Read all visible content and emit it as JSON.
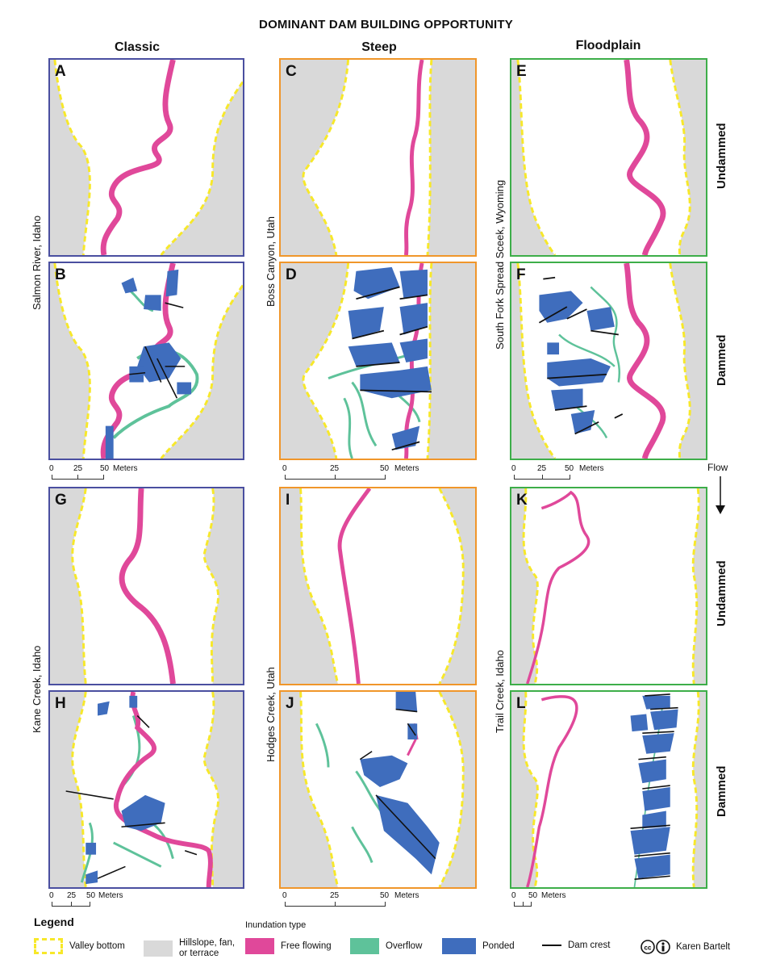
{
  "title": "DOMINANT DAM BUILDING OPPORTUNITY",
  "columns": [
    "Classic",
    "Steep",
    "Floodplain"
  ],
  "row_labels": {
    "undammed": "Undammed",
    "dammed": "Dammed"
  },
  "sites": {
    "salmon": "Salmon River, Idaho",
    "boss": "Boss Canyon, Utah",
    "southfork": "South Fork Spread Sceek, Wyoming",
    "kane": "Kane Creek, Idaho",
    "hodges": "Hodges Creek, Utah",
    "trail": "Trail Creek, Idaho"
  },
  "panels": [
    "A",
    "B",
    "C",
    "D",
    "E",
    "F",
    "G",
    "H",
    "I",
    "J",
    "K",
    "L"
  ],
  "scales": {
    "s1": {
      "t0": "0",
      "t1": "25",
      "t2": "50",
      "unit": "Meters"
    },
    "s2": {
      "t0": "0",
      "t1": "25",
      "t2": "50",
      "unit": "Meters"
    },
    "s3": {
      "t0": "0",
      "t1": "25",
      "t2": "50",
      "unit": "Meters"
    },
    "s4": {
      "t0": "0",
      "t1": "25",
      "t2": "50",
      "unit": "Meters"
    },
    "s5": {
      "t0": "0",
      "t1": "25",
      "t2": "50",
      "unit": "Meters"
    },
    "s6": {
      "t0": "0",
      "t2": "50",
      "unit": "Meters"
    }
  },
  "flow_label": "Flow",
  "legend": {
    "title": "Legend",
    "inundation_title": "Inundation type",
    "valley": "Valley bottom",
    "hillslope_1": "Hillslope, fan,",
    "hillslope_2": "or terrace",
    "free": "Free flowing",
    "overflow": "Overflow",
    "ponded": "Ponded",
    "crest": "Dam crest",
    "credit": "Karen Bartelt"
  },
  "colors": {
    "classic": "#4a4fa0",
    "steep": "#f0962a",
    "floodplain": "#3dae49",
    "hillslope": "#d9d9d9",
    "valley": "#f7e82a",
    "free": "#e0489a",
    "overflow": "#5ec29a",
    "ponded": "#3f6dbd",
    "crest": "#111111"
  }
}
